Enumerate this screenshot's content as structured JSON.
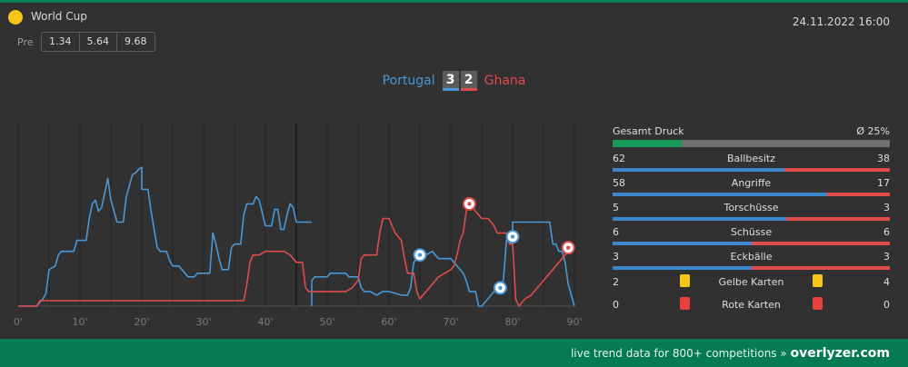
{
  "competition": {
    "name": "World Cup",
    "icon": "yellow-ball-icon"
  },
  "match": {
    "datetime": "24.11.2022 16:00",
    "home": "Portugal",
    "away": "Ghana",
    "home_score": "3",
    "away_score": "2"
  },
  "odds": {
    "label": "Pre",
    "values": [
      "1.34",
      "5.64",
      "9.68"
    ]
  },
  "colors": {
    "home": "#4a97d6",
    "away": "#e04b4b",
    "accent": "#047a55",
    "pressure": "#169a58"
  },
  "chart_data": {
    "type": "line",
    "x_ticks": [
      "0'",
      "10'",
      "20'",
      "30'",
      "40'",
      "50'",
      "60'",
      "70'",
      "80'",
      "90'"
    ],
    "xlim": [
      0,
      90
    ],
    "ylim": [
      0,
      100
    ],
    "series": [
      {
        "name": "Portugal",
        "points": [
          [
            0,
            0
          ],
          [
            3,
            0
          ],
          [
            4,
            4
          ],
          [
            4.5,
            7
          ],
          [
            5,
            20
          ],
          [
            6,
            22
          ],
          [
            6.5,
            28
          ],
          [
            7,
            30
          ],
          [
            9,
            30
          ],
          [
            9.5,
            36
          ],
          [
            11,
            36
          ],
          [
            11.5,
            48
          ],
          [
            12,
            56
          ],
          [
            12.5,
            58
          ],
          [
            13,
            52
          ],
          [
            13.5,
            54
          ],
          [
            14,
            62
          ],
          [
            14.5,
            70
          ],
          [
            15,
            58
          ],
          [
            16,
            46
          ],
          [
            17,
            46
          ],
          [
            17.5,
            60
          ],
          [
            18,
            66
          ],
          [
            18.5,
            72
          ],
          [
            19,
            73
          ],
          [
            19.5,
            75
          ],
          [
            20,
            76
          ],
          [
            20,
            64
          ],
          [
            21,
            64
          ],
          [
            21.5,
            52
          ],
          [
            22,
            42
          ],
          [
            22.5,
            32
          ],
          [
            23,
            30
          ],
          [
            24,
            30
          ],
          [
            24.5,
            25
          ],
          [
            25,
            22
          ],
          [
            26,
            22
          ],
          [
            26.5,
            20
          ],
          [
            27,
            18
          ],
          [
            27.5,
            16
          ],
          [
            28.5,
            16
          ],
          [
            29,
            18
          ],
          [
            30,
            18
          ],
          [
            31,
            18
          ],
          [
            31.5,
            40
          ],
          [
            32,
            34
          ],
          [
            32.5,
            26
          ],
          [
            33,
            20
          ],
          [
            34,
            20
          ],
          [
            34.5,
            32
          ],
          [
            35,
            34
          ],
          [
            36,
            34
          ],
          [
            36.5,
            50
          ],
          [
            37,
            56
          ],
          [
            38,
            56
          ],
          [
            38.5,
            60
          ],
          [
            39,
            58
          ],
          [
            40,
            44
          ],
          [
            41,
            44
          ],
          [
            41.5,
            53
          ],
          [
            42,
            53
          ],
          [
            42.5,
            42
          ],
          [
            43,
            42
          ],
          [
            43.5,
            50
          ],
          [
            44,
            56
          ],
          [
            44.5,
            54
          ],
          [
            45,
            46
          ],
          [
            46,
            46
          ],
          [
            47.5,
            46
          ]
        ]
      },
      {
        "name": "Portugal",
        "points": [
          [
            47.5,
            0
          ],
          [
            47.5,
            14
          ],
          [
            48,
            16
          ],
          [
            49,
            16
          ],
          [
            50,
            16
          ],
          [
            50.5,
            18
          ],
          [
            51,
            18
          ],
          [
            52,
            18
          ],
          [
            53,
            18
          ],
          [
            53.5,
            16
          ],
          [
            54,
            16
          ],
          [
            55,
            16
          ],
          [
            55.5,
            10
          ],
          [
            56,
            8
          ],
          [
            57,
            8
          ],
          [
            58,
            6
          ],
          [
            59,
            8
          ],
          [
            60,
            8
          ],
          [
            61,
            7
          ],
          [
            62,
            6
          ],
          [
            63,
            6
          ],
          [
            63.5,
            10
          ],
          [
            64,
            24
          ],
          [
            65,
            28
          ],
          [
            66,
            28
          ],
          [
            67,
            30
          ],
          [
            67.5,
            28
          ],
          [
            68,
            26
          ],
          [
            69,
            26
          ],
          [
            70,
            26
          ],
          [
            71,
            22
          ],
          [
            71.5,
            20
          ],
          [
            72,
            18
          ],
          [
            72.5,
            14
          ],
          [
            73,
            8
          ],
          [
            74,
            8
          ],
          [
            74.5,
            0
          ],
          [
            75,
            0
          ],
          [
            76,
            4
          ],
          [
            77,
            8
          ],
          [
            77.5,
            10
          ],
          [
            78,
            12
          ],
          [
            78.5,
            14
          ],
          [
            79,
            36
          ],
          [
            80,
            34
          ],
          [
            80,
            46
          ],
          [
            81,
            46
          ],
          [
            82,
            46
          ],
          [
            83,
            46
          ],
          [
            84,
            46
          ],
          [
            85,
            46
          ],
          [
            86,
            46
          ],
          [
            86.5,
            34
          ],
          [
            87,
            34
          ],
          [
            87.5,
            30
          ],
          [
            88,
            30
          ],
          [
            88.5,
            24
          ],
          [
            89,
            12
          ],
          [
            89.5,
            6
          ],
          [
            90,
            0
          ]
        ]
      },
      {
        "name": "Ghana",
        "points": [
          [
            0,
            0
          ],
          [
            3,
            0
          ],
          [
            3.5,
            3
          ],
          [
            5,
            3
          ],
          [
            6,
            3
          ],
          [
            7,
            3
          ],
          [
            8,
            3
          ],
          [
            9,
            3
          ],
          [
            10,
            3
          ],
          [
            11,
            3
          ],
          [
            12,
            3
          ],
          [
            13,
            3
          ],
          [
            14,
            3
          ],
          [
            15,
            3
          ],
          [
            16,
            3
          ],
          [
            17,
            3
          ],
          [
            18,
            3
          ],
          [
            19,
            3
          ],
          [
            20,
            3
          ],
          [
            21,
            3
          ],
          [
            22,
            3
          ],
          [
            23,
            3
          ],
          [
            24,
            3
          ],
          [
            25,
            3
          ],
          [
            26,
            3
          ],
          [
            27,
            3
          ],
          [
            28,
            3
          ],
          [
            29,
            3
          ],
          [
            30,
            3
          ],
          [
            31,
            3
          ],
          [
            32,
            3
          ],
          [
            33,
            3
          ],
          [
            34,
            3
          ],
          [
            35,
            3
          ],
          [
            36,
            3
          ],
          [
            36.5,
            3
          ],
          [
            37,
            12
          ],
          [
            37.5,
            24
          ],
          [
            38,
            28
          ],
          [
            39,
            28
          ],
          [
            40,
            30
          ],
          [
            41,
            30
          ],
          [
            42,
            30
          ],
          [
            43,
            30
          ],
          [
            44,
            28
          ],
          [
            45,
            24
          ],
          [
            46,
            24
          ],
          [
            46.5,
            10
          ],
          [
            47,
            8
          ],
          [
            48,
            8
          ],
          [
            49,
            8
          ],
          [
            50,
            8
          ],
          [
            51,
            8
          ],
          [
            52,
            8
          ],
          [
            53,
            8
          ],
          [
            54,
            10
          ],
          [
            55,
            14
          ],
          [
            55.5,
            26
          ],
          [
            56,
            28
          ],
          [
            57,
            28
          ],
          [
            58,
            28
          ],
          [
            58.5,
            40
          ],
          [
            59,
            48
          ],
          [
            60,
            48
          ],
          [
            61,
            40
          ],
          [
            62,
            36
          ],
          [
            62.5,
            26
          ],
          [
            63,
            18
          ],
          [
            64,
            18
          ],
          [
            64.5,
            8
          ],
          [
            65,
            4
          ],
          [
            66,
            8
          ],
          [
            67,
            12
          ],
          [
            68,
            16
          ],
          [
            69,
            18
          ],
          [
            70,
            20
          ],
          [
            70.5,
            22
          ],
          [
            71,
            28
          ],
          [
            71.5,
            36
          ],
          [
            72,
            40
          ],
          [
            72.5,
            52
          ],
          [
            73,
            56
          ],
          [
            74,
            52
          ],
          [
            75,
            48
          ],
          [
            76,
            48
          ],
          [
            77,
            44
          ],
          [
            77.5,
            40
          ],
          [
            78,
            40
          ],
          [
            79,
            40
          ],
          [
            79.5,
            34
          ],
          [
            80,
            34
          ],
          [
            80.5,
            4
          ],
          [
            81,
            0
          ],
          [
            82,
            4
          ],
          [
            83,
            6
          ],
          [
            84,
            10
          ],
          [
            85,
            14
          ],
          [
            86,
            18
          ],
          [
            87,
            22
          ],
          [
            88,
            26
          ],
          [
            89,
            30
          ],
          [
            90,
            32
          ]
        ]
      }
    ],
    "goals": [
      {
        "team": "Portugal",
        "minute": 65,
        "value": 28
      },
      {
        "team": "Ghana",
        "minute": 73,
        "value": 56
      },
      {
        "team": "Portugal",
        "minute": 78,
        "value": 10
      },
      {
        "team": "Portugal",
        "minute": 80,
        "value": 38
      },
      {
        "team": "Ghana",
        "minute": 89,
        "value": 32
      }
    ]
  },
  "stats": {
    "pressure": {
      "label": "Gesamt Druck",
      "value": "Ø 25%",
      "fraction": 0.25
    },
    "rows": [
      {
        "name": "Ballbesitz",
        "home": "62",
        "away": "38"
      },
      {
        "name": "Angriffe",
        "home": "58",
        "away": "17"
      },
      {
        "name": "Torschüsse",
        "home": "5",
        "away": "3"
      },
      {
        "name": "Schüsse",
        "home": "6",
        "away": "6"
      },
      {
        "name": "Eckbälle",
        "home": "3",
        "away": "3"
      }
    ],
    "cards": [
      {
        "name": "Gelbe Karten",
        "home": "2",
        "away": "4",
        "color": "yellow"
      },
      {
        "name": "Rote Karten",
        "home": "0",
        "away": "0",
        "color": "red"
      }
    ]
  },
  "footer": {
    "text": "live trend data for 800+ competitions »",
    "brand": "overlyzer.com"
  }
}
